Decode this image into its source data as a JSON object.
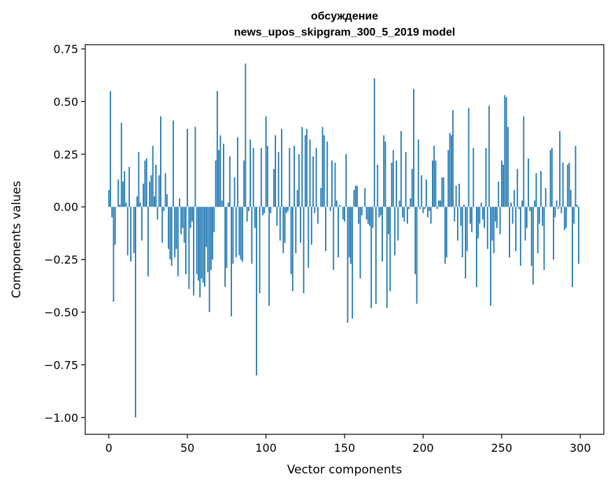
{
  "chart_data": {
    "type": "bar",
    "title": "обсуждение",
    "subtitle": "news_upos_skipgram_300_5_2019 model",
    "xlabel": "Vector components",
    "ylabel": "Components values",
    "xlim": [
      -15,
      315
    ],
    "ylim": [
      -1.08,
      0.77
    ],
    "xticks": [
      0,
      50,
      100,
      150,
      200,
      250,
      300
    ],
    "xtick_labels": [
      "0",
      "50",
      "100",
      "150",
      "200",
      "250",
      "300"
    ],
    "yticks": [
      0.75,
      0.5,
      0.25,
      0.0,
      -0.25,
      -0.5,
      -0.75,
      -1.0
    ],
    "ytick_labels": [
      "0.75",
      "0.50",
      "0.25",
      "0.00",
      "−0.25",
      "−0.50",
      "−0.75",
      "−1.00"
    ],
    "grid": false,
    "color": "#1f77b4",
    "x": "0..299",
    "values": [
      0.08,
      0.55,
      -0.05,
      -0.45,
      -0.18,
      0.0,
      0.13,
      0.01,
      0.4,
      0.12,
      0.17,
      0.02,
      -0.23,
      0.19,
      -0.26,
      0.0,
      -0.22,
      -1.0,
      0.05,
      0.26,
      0.02,
      -0.16,
      0.11,
      0.22,
      0.23,
      -0.33,
      0.12,
      0.15,
      0.29,
      0.05,
      0.2,
      -0.06,
      0.15,
      0.43,
      -0.17,
      -0.02,
      0.16,
      0.06,
      -0.2,
      -0.25,
      -0.28,
      0.41,
      -0.24,
      -0.2,
      -0.33,
      0.04,
      -0.13,
      -0.1,
      -0.17,
      -0.32,
      0.37,
      -0.39,
      -0.1,
      -0.07,
      -0.42,
      0.38,
      -0.32,
      -0.35,
      -0.43,
      -0.34,
      -0.36,
      -0.38,
      -0.19,
      -0.31,
      -0.5,
      -0.3,
      -0.25,
      -0.12,
      0.22,
      0.55,
      0.27,
      0.34,
      0.03,
      0.3,
      -0.38,
      -0.29,
      0.02,
      0.24,
      -0.52,
      -0.27,
      0.14,
      -0.24,
      0.33,
      -0.23,
      -0.25,
      -0.26,
      0.22,
      0.68,
      -0.07,
      -0.02,
      0.32,
      -0.27,
      0.28,
      -0.1,
      -0.8,
      0.0,
      -0.41,
      0.28,
      -0.04,
      -0.03,
      0.43,
      0.29,
      -0.47,
      -0.03,
      0.0,
      0.18,
      0.34,
      -0.09,
      0.26,
      -0.16,
      0.37,
      -0.22,
      -0.17,
      -0.03,
      -0.02,
      0.28,
      -0.32,
      -0.4,
      0.29,
      -0.22,
      0.08,
      0.25,
      -0.17,
      0.38,
      -0.41,
      0.34,
      0.37,
      -0.29,
      0.32,
      -0.18,
      0.24,
      -0.03,
      0.28,
      -0.08,
      0.0,
      0.09,
      0.38,
      0.34,
      -0.21,
      0.31,
      0.0,
      -0.02,
      0.22,
      -0.3,
      0.21,
      0.03,
      -0.24,
      0.01,
      0.0,
      -0.06,
      -0.07,
      0.25,
      -0.55,
      -0.24,
      -0.27,
      -0.53,
      0.08,
      0.1,
      0.1,
      -0.08,
      -0.34,
      -0.04,
      0.0,
      0.09,
      -0.06,
      -0.08,
      -0.09,
      -0.48,
      -0.1,
      0.61,
      -0.46,
      0.2,
      -0.05,
      -0.04,
      -0.26,
      0.34,
      0.31,
      -0.48,
      -0.13,
      -0.4,
      0.21,
      0.27,
      -0.23,
      0.22,
      -0.16,
      0.03,
      0.36,
      -0.05,
      -0.07,
      0.26,
      -0.08,
      -0.01,
      0.04,
      0.18,
      0.56,
      -0.32,
      -0.46,
      0.32,
      -0.01,
      0.15,
      -0.03,
      -0.01,
      0.13,
      -0.05,
      -0.02,
      -0.08,
      0.22,
      0.29,
      0.22,
      -0.01,
      0.03,
      0.03,
      0.14,
      0.14,
      -0.27,
      -0.24,
      0.27,
      0.35,
      0.34,
      0.46,
      -0.07,
      0.1,
      -0.16,
      0.11,
      -0.09,
      -0.24,
      0.01,
      -0.34,
      -0.21,
      0.47,
      -0.08,
      -0.12,
      0.28,
      0.0,
      -0.38,
      -0.15,
      -0.08,
      0.02,
      -0.06,
      -0.1,
      0.28,
      -0.2,
      0.48,
      -0.47,
      -0.16,
      -0.22,
      -0.07,
      -0.1,
      0.12,
      -0.13,
      0.22,
      0.2,
      0.53,
      0.52,
      0.38,
      -0.24,
      0.02,
      -0.08,
      0.08,
      -0.21,
      0.18,
      -0.01,
      -0.28,
      0.03,
      0.43,
      -0.16,
      -0.1,
      0.23,
      -0.02,
      -0.28,
      -0.37,
      0.03,
      0.16,
      -0.22,
      -0.08,
      0.17,
      -0.09,
      -0.3,
      0.09,
      0.0,
      0.0,
      0.27,
      0.28,
      -0.25,
      -0.05,
      0.03,
      -0.01,
      0.36,
      -0.03,
      0.21,
      -0.11,
      -0.1,
      0.2,
      0.21,
      0.08,
      -0.38,
      -0.08,
      0.29,
      0.01,
      -0.27
    ]
  }
}
